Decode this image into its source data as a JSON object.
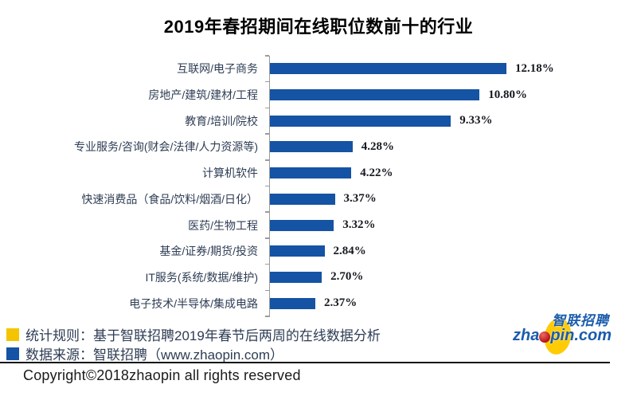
{
  "chart_data": {
    "type": "bar",
    "orientation": "horizontal",
    "title": "2019年春招期间在线职位数前十的行业",
    "categories": [
      "互联网/电子商务",
      "房地产/建筑/建材/工程",
      "教育/培训/院校",
      "专业服务/咨询(财会/法律/人力资源等)",
      "计算机软件",
      "快速消费品（食品/饮料/烟酒/日化）",
      "医药/生物工程",
      "基金/证券/期货/投资",
      "IT服务(系统/数据/维护)",
      "电子技术/半导体/集成电路"
    ],
    "values": [
      12.18,
      10.8,
      9.33,
      4.28,
      4.22,
      3.37,
      3.32,
      2.84,
      2.7,
      2.37
    ],
    "value_labels": [
      "12.18%",
      "10.80%",
      "9.33%",
      "4.28%",
      "4.22%",
      "3.37%",
      "3.32%",
      "2.84%",
      "2.70%",
      "2.37%"
    ],
    "xlabel": "",
    "ylabel": "",
    "grid": false,
    "legend": false,
    "bar_color": "#1553a4",
    "axis_color": "#9b9b9b",
    "category_label_color": "#2e3d54",
    "value_label_color": "#15181f"
  },
  "footnotes": {
    "items": [
      {
        "marker_color": "#f5c400",
        "text": "统计规则：基于智联招聘2019年春节后两周的在线数据分析"
      },
      {
        "marker_color": "#1553a4",
        "text": "数据来源：智联招聘（www.zhaopin.com）"
      }
    ]
  },
  "footer": {
    "copyright": "Copyright©2018zhaopin all rights reserved"
  },
  "logo": {
    "cn_text": "智联招聘",
    "en_prefix": "zha",
    "en_suffix": "pin.com",
    "blue": "#1a5cad",
    "yellow": "#ffcb05",
    "red": "#b5121b"
  }
}
